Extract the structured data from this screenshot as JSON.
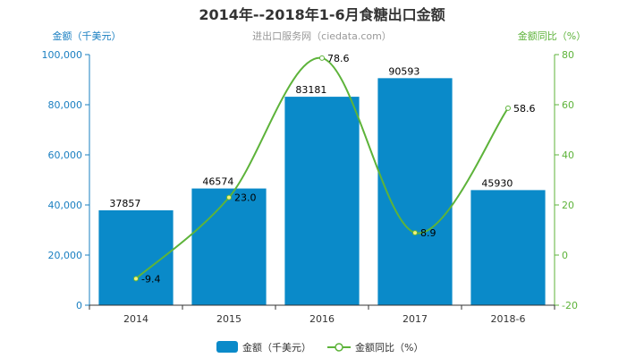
{
  "colors": {
    "bar": "#0a8ac9",
    "line": "#5db33a",
    "left_axis": "#1a7fc1",
    "right_axis": "#5db33a",
    "marker_fill": "#f3f07a"
  },
  "chart_data": {
    "type": "bar",
    "title": "2014年--2018年1-6月食糖出口金额",
    "subtitle": "进出口服务网（ciedata.com）",
    "categories": [
      "2014",
      "2015",
      "2016",
      "2017",
      "2018-6"
    ],
    "series": [
      {
        "name": "金额（千美元）",
        "type": "bar",
        "axis": "left",
        "values": [
          37857,
          46574,
          83181,
          90593,
          45930
        ]
      },
      {
        "name": "金额同比（%）",
        "type": "line",
        "axis": "right",
        "values": [
          -9.4,
          23.0,
          78.6,
          8.9,
          58.6
        ],
        "labels": [
          "-9.4",
          "23.0",
          "78.6",
          "8.9",
          "58.6"
        ]
      }
    ],
    "y_left": {
      "label": "金额（千美元）",
      "ylim": [
        0,
        100000
      ],
      "ticks": [
        0,
        20000,
        40000,
        60000,
        80000,
        100000
      ],
      "tick_labels": [
        "0",
        "20,000",
        "40,000",
        "60,000",
        "80,000",
        "100,000"
      ]
    },
    "y_right": {
      "label": "金额同比（%）",
      "ylim": [
        -20,
        80
      ],
      "ticks": [
        -20,
        0,
        20,
        40,
        60,
        80
      ],
      "tick_labels": [
        "-20",
        "0",
        "20",
        "40",
        "60",
        "80"
      ]
    },
    "legend": {
      "position": "bottom",
      "items": [
        "金额（千美元）",
        "金额同比（%）"
      ]
    },
    "grid": false
  }
}
